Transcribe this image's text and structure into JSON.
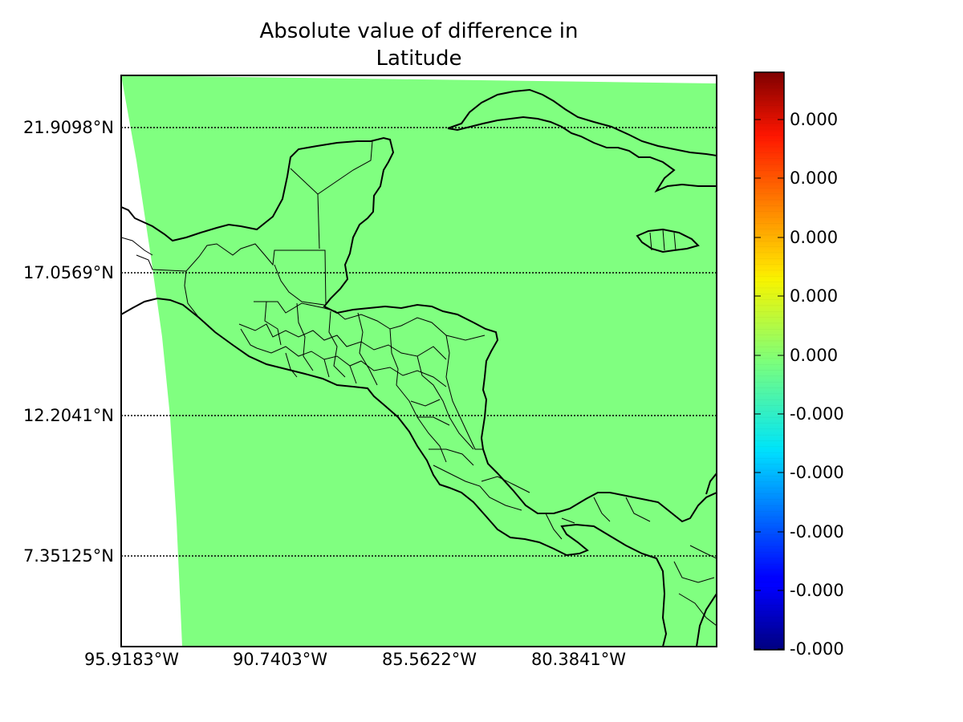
{
  "title": {
    "line1": "Absolute value of difference in",
    "line2": "Latitude"
  },
  "colors": {
    "field_fill": "#80ff80",
    "coastline": "#000000",
    "gridline": "#000000",
    "colormap": "jet"
  },
  "map": {
    "projection": "lambert-conformal",
    "field_value_color_position": 0.5,
    "parallels": [
      {
        "label": "21.9098°N",
        "value": 21.9098
      },
      {
        "label": "17.0569°N",
        "value": 17.0569
      },
      {
        "label": "12.2041°N",
        "value": 12.2041
      },
      {
        "label": "7.35125°N",
        "value": 7.35125
      }
    ],
    "meridians": [
      {
        "label": "95.9183°W",
        "value": -95.9183
      },
      {
        "label": "90.7403°W",
        "value": -90.7403
      },
      {
        "label": "85.5622°W",
        "value": -85.5622
      },
      {
        "label": "80.3841°W",
        "value": -80.3841
      }
    ],
    "regions": [
      "Mexico",
      "Yucatan Peninsula",
      "Guatemala",
      "Belize",
      "Honduras",
      "El Salvador",
      "Nicaragua",
      "Costa Rica",
      "Panama",
      "Cuba",
      "Jamaica",
      "Colombia"
    ]
  },
  "colorbar": {
    "tick_labels": [
      "0.000",
      "0.000",
      "0.000",
      "0.000",
      "0.000",
      "-0.000",
      "-0.000",
      "-0.000",
      "-0.000",
      "-0.000"
    ]
  }
}
